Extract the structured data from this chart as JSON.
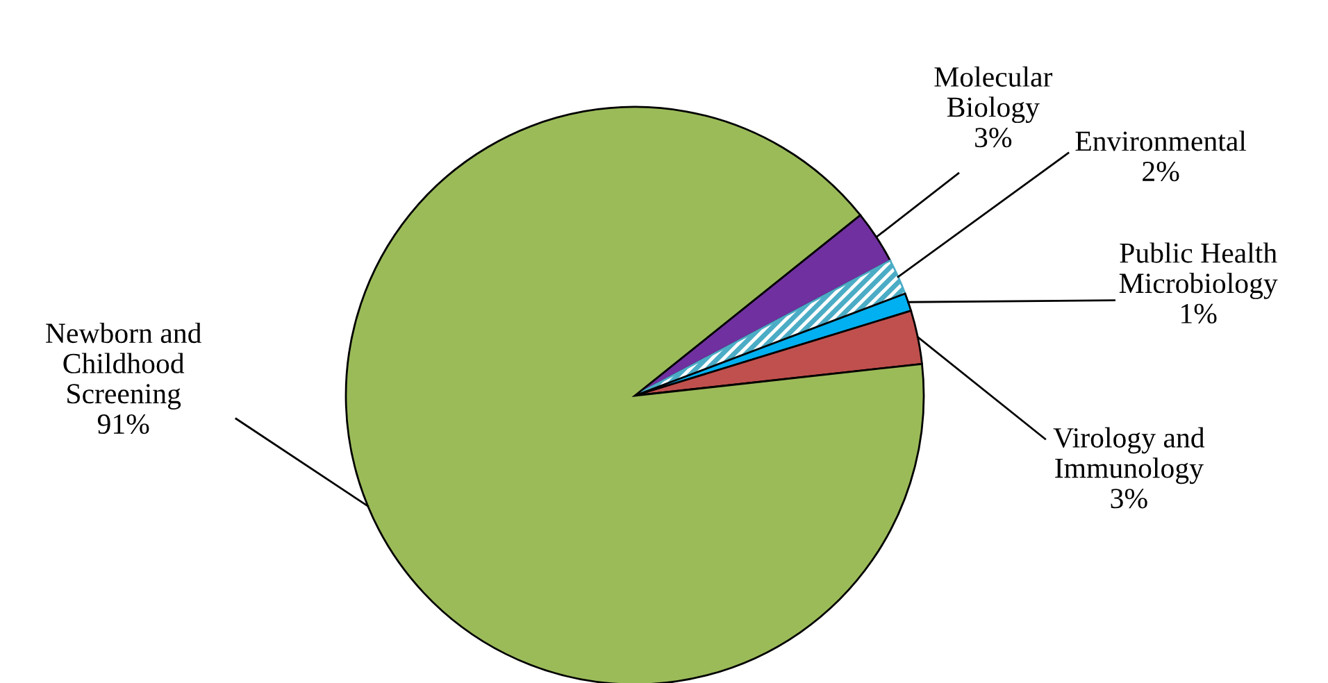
{
  "chart_data": {
    "type": "pie",
    "categories": [
      "Molecular\nBiology",
      "Environmental",
      "Public Health\nMicrobiology",
      "Virology and\nImmunology",
      "Newborn and\nChildhood\nScreening"
    ],
    "values": [
      3,
      2,
      1,
      3,
      91
    ],
    "colors": [
      "#7030a0",
      "#4bacc6",
      "#00b0f0",
      "#c0504d",
      "#9bbb59"
    ],
    "value_labels": [
      "3%",
      "2%",
      "1%",
      "3%",
      "91%"
    ],
    "legend": false
  }
}
